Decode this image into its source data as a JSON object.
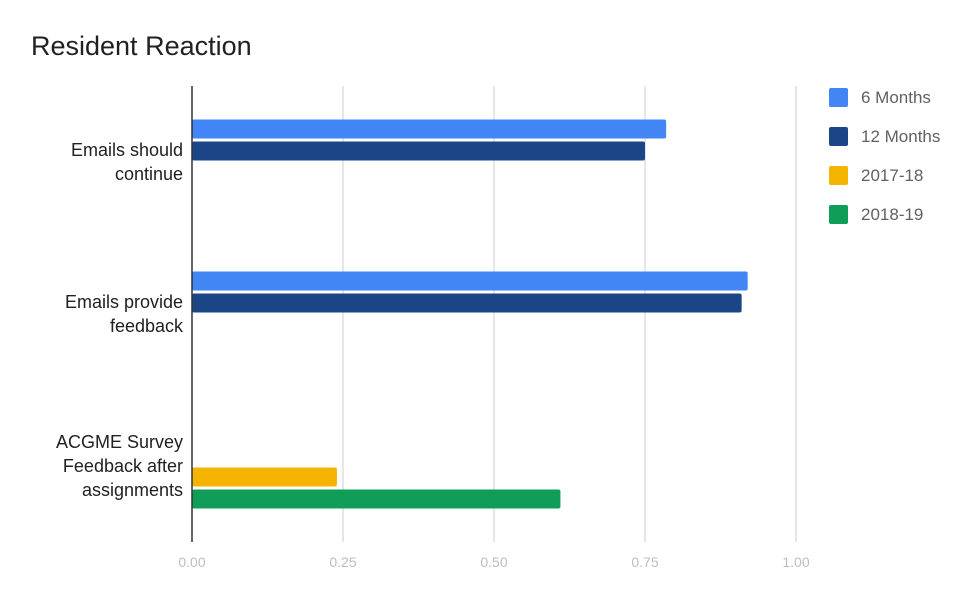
{
  "chart_data": {
    "type": "bar",
    "orientation": "horizontal",
    "title": "Resident Reaction",
    "xlabel": "",
    "ylabel": "",
    "xlim": [
      0,
      1
    ],
    "x_ticks": [
      "0.00",
      "0.25",
      "0.50",
      "0.75",
      "1.00"
    ],
    "grid": true,
    "legend_position": "right",
    "categories": [
      [
        "Emails should",
        "continue"
      ],
      [
        "Emails provide",
        "feedback"
      ],
      [
        "ACGME Survey",
        "Feedback after",
        "assignments"
      ]
    ],
    "series": [
      {
        "name": "6 Months",
        "color": "#4285f4",
        "values": [
          0.785,
          0.92,
          null
        ]
      },
      {
        "name": "12 Months",
        "color": "#1c4587",
        "values": [
          0.75,
          0.91,
          null
        ]
      },
      {
        "name": "2017-18",
        "color": "#f4b400",
        "values": [
          null,
          null,
          0.24
        ]
      },
      {
        "name": "2018-19",
        "color": "#0f9d58",
        "values": [
          null,
          null,
          0.61
        ]
      }
    ]
  }
}
